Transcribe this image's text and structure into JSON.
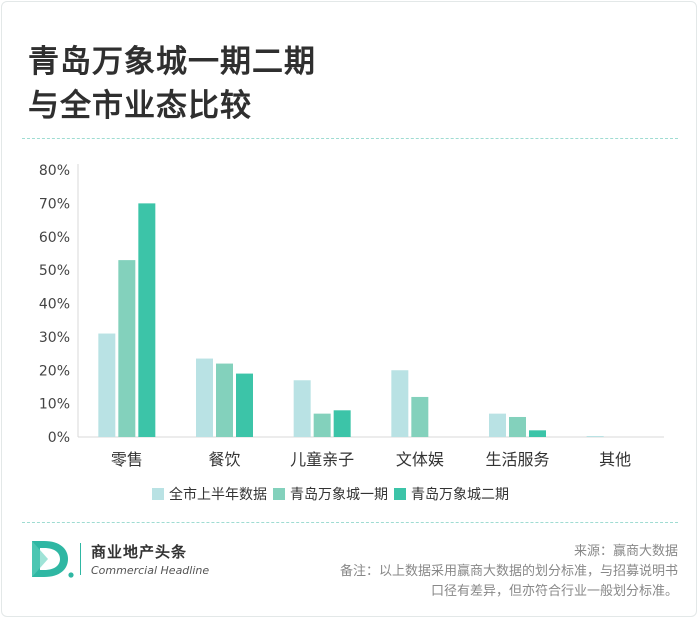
{
  "header": {
    "title_line1": "青岛万象城一期二期",
    "title_line2": "与全市业态比较"
  },
  "colors": {
    "divider": "#9fdcd2",
    "title": "#2f2f2f",
    "brand": "#2fb7a3"
  },
  "chart_data": {
    "type": "bar",
    "categories": [
      "零售",
      "餐饮",
      "儿童亲子",
      "文体娱",
      "生活服务",
      "其他"
    ],
    "series": [
      {
        "name": "全市上半年数据",
        "values": [
          31,
          23.5,
          17,
          20,
          7,
          0.3
        ],
        "color": "#b9e2e4"
      },
      {
        "name": "青岛万象城一期",
        "values": [
          53,
          22,
          7,
          12,
          6,
          0
        ],
        "color": "#83d1bc"
      },
      {
        "name": "青岛万象城二期",
        "values": [
          70,
          19,
          8,
          0,
          2,
          0
        ],
        "color": "#3cc4a8"
      }
    ],
    "y_ticks": [
      "0%",
      "10%",
      "20%",
      "30%",
      "40%",
      "50%",
      "60%",
      "70%",
      "80%"
    ],
    "ylim": [
      0,
      80
    ],
    "grid": false,
    "legend_position": "bottom"
  },
  "footer": {
    "logo_cn": "商业地产头条",
    "logo_en": "Commercial Headline",
    "source": "来源：赢商大数据",
    "note_line1": "备注：以上数据采用赢商大数据的划分标准，与招募说明书",
    "note_line2": "口径有差异，但亦符合行业一般划分标准。"
  }
}
